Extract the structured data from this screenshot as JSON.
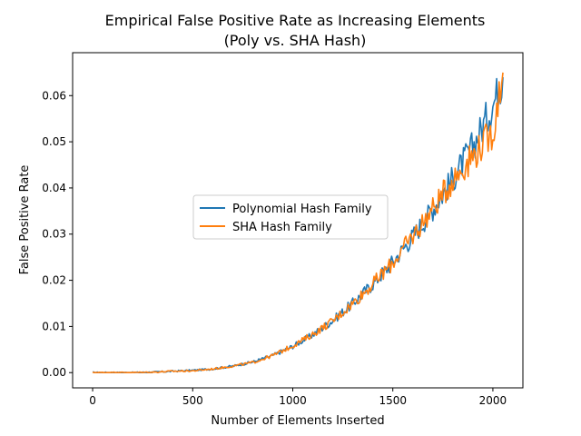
{
  "chart_data": {
    "type": "line",
    "title_line1": "Empirical False Positive Rate as Increasing Elements",
    "title_line2": "(Poly vs. SHA Hash)",
    "xlabel": "Number of Elements Inserted",
    "ylabel": "False Positive Rate",
    "xlim": [
      -100,
      2150
    ],
    "ylim": [
      -0.0033,
      0.0693
    ],
    "x_ticks": [
      0,
      500,
      1000,
      1500,
      2000
    ],
    "x_tick_labels": [
      "0",
      "500",
      "1000",
      "1500",
      "2000"
    ],
    "y_ticks": [
      0.0,
      0.01,
      0.02,
      0.03,
      0.04,
      0.05,
      0.06
    ],
    "y_tick_labels": [
      "0.00",
      "0.01",
      "0.02",
      "0.03",
      "0.04",
      "0.05",
      "0.06"
    ],
    "grid": false,
    "legend_position": "center-left",
    "x": [
      0,
      100,
      200,
      300,
      400,
      500,
      600,
      700,
      800,
      900,
      1000,
      1100,
      1200,
      1300,
      1400,
      1500,
      1600,
      1700,
      1800,
      1900,
      2000,
      2050
    ],
    "series": [
      {
        "name": "Polynomial Hash Family",
        "color": "#1f77b4",
        "values": [
          0.0,
          0.0,
          0.0,
          0.0001,
          0.0003,
          0.0005,
          0.0008,
          0.0014,
          0.0023,
          0.0037,
          0.0057,
          0.0082,
          0.0113,
          0.015,
          0.0192,
          0.024,
          0.0295,
          0.0355,
          0.042,
          0.049,
          0.058,
          0.064
        ]
      },
      {
        "name": "SHA Hash Family",
        "color": "#ff7f0e",
        "values": [
          0.0,
          0.0,
          0.0,
          0.0001,
          0.0003,
          0.0004,
          0.0008,
          0.0014,
          0.0022,
          0.0037,
          0.0058,
          0.0083,
          0.0112,
          0.015,
          0.0192,
          0.0238,
          0.0296,
          0.0355,
          0.0418,
          0.047,
          0.052,
          0.065
        ]
      }
    ]
  }
}
